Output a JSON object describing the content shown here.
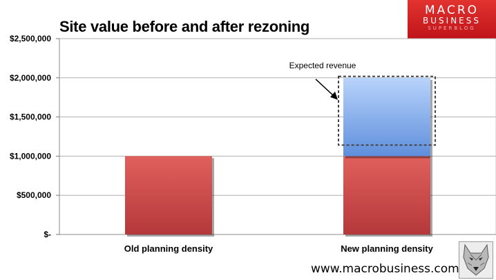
{
  "header": {
    "title": "Site value before and after rezoning"
  },
  "brand": {
    "line1": "MACRO",
    "line2": "BUSINESS",
    "line3": "SUPERBLOG",
    "color": "#d21f25"
  },
  "footer": {
    "website": "www.macrobusiness.com.au"
  },
  "chart_data": {
    "type": "bar",
    "stacked": true,
    "categories": [
      "Old planning density",
      "New planning density"
    ],
    "series": [
      {
        "values": [
          1000000,
          1000000
        ],
        "color": "#c8403d"
      },
      {
        "values": [
          0,
          1000000
        ],
        "color": "#7fa8ea"
      }
    ],
    "y_ticks": [
      "$-",
      "$500,000",
      "$1,000,000",
      "$1,500,000",
      "$2,000,000",
      "$2,500,000"
    ],
    "ylim": [
      0,
      2500000
    ],
    "grid": true,
    "annotation": {
      "text": "Expected revenue",
      "target": "New planning density"
    }
  }
}
